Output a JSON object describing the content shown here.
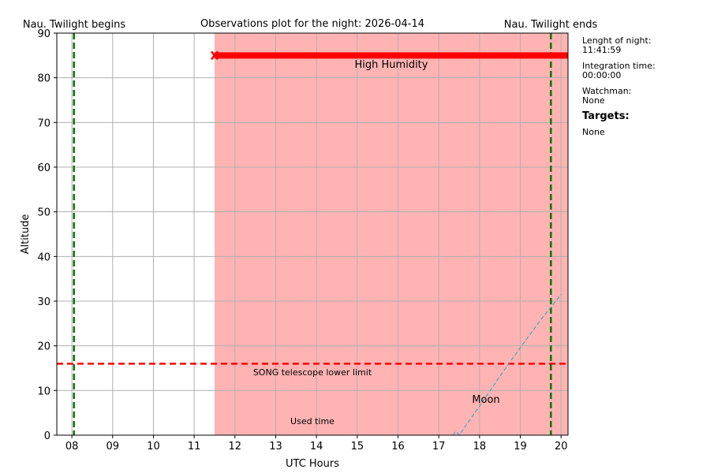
{
  "chart_data": {
    "type": "line",
    "title": "Observations plot for the night: 2026-04-14",
    "xlabel": "UTC Hours",
    "ylabel": "Altitude",
    "xlim": [
      7.63,
      20.17
    ],
    "ylim": [
      0,
      90
    ],
    "x_ticks": [
      8,
      9,
      10,
      11,
      12,
      13,
      14,
      15,
      16,
      17,
      18,
      19,
      20
    ],
    "x_tick_labels": [
      "08",
      "09",
      "10",
      "11",
      "12",
      "13",
      "14",
      "15",
      "16",
      "17",
      "18",
      "19",
      "20"
    ],
    "y_ticks": [
      0,
      10,
      20,
      30,
      40,
      50,
      60,
      70,
      80,
      90
    ],
    "grid": true,
    "twilight": {
      "begin_label": "Nau. Twilight begins",
      "end_label": "Nau. Twilight ends",
      "begin_x": 8.05,
      "end_x": 19.75,
      "color": "#007700"
    },
    "lower_limit": {
      "label": "SONG telescope lower limit",
      "y": 16,
      "color": "#ff0000"
    },
    "humidity": {
      "label": "High Humidity",
      "x_start": 11.5,
      "x_end": 20.17,
      "y": 85,
      "color": "#ff0000",
      "shade_color": "#ffb3b3"
    },
    "moon": {
      "label": "Moon",
      "color": "#3aabbf",
      "x": [
        17.35,
        17.4,
        17.45,
        17.5,
        18.0,
        18.5,
        19.0,
        19.5,
        20.0
      ],
      "y": [
        0,
        0.8,
        0.6,
        0,
        6.5,
        13.2,
        19.6,
        25.8,
        31.5
      ]
    },
    "used_time_label": "Used time"
  },
  "side_panel": {
    "night_length_label": "Lenght of night:",
    "night_length_value": "11:41:59",
    "integration_label": "Integration time:",
    "integration_value": "00:00:00",
    "watchman_label": "Watchman:",
    "watchman_value": "None",
    "targets_heading": "Targets:",
    "targets_value": "None"
  }
}
